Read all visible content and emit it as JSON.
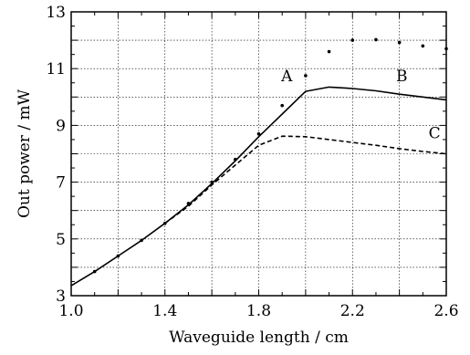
{
  "chart_data": {
    "type": "line",
    "title": "",
    "xlabel": "Waveguide length / cm",
    "ylabel": "Out power / mW",
    "xlim": [
      1.0,
      2.6
    ],
    "ylim": [
      3,
      13
    ],
    "xticks": [
      1.0,
      1.4,
      1.8,
      2.2,
      2.6
    ],
    "xtick_labels": [
      "1.0",
      "1.4",
      "1.8",
      "2.2",
      "2.6"
    ],
    "yticks": [
      3,
      5,
      7,
      9,
      11,
      13
    ],
    "ytick_labels": [
      "3",
      "5",
      "7",
      "9",
      "11",
      "13"
    ],
    "grid": true,
    "legend": "none",
    "series": [
      {
        "style": "dots",
        "color": "#000000",
        "x": [
          1.1,
          1.2,
          1.3,
          1.4,
          1.5,
          1.6,
          1.7,
          1.8,
          1.9,
          2.0,
          2.1,
          2.2,
          2.3,
          2.4,
          2.5,
          2.6
        ],
        "y": [
          3.85,
          4.4,
          4.95,
          5.55,
          6.25,
          7.0,
          7.8,
          8.7,
          9.7,
          10.75,
          11.6,
          12.0,
          12.02,
          11.92,
          11.8,
          11.7
        ]
      },
      {
        "style": "solid",
        "color": "#000000",
        "x": [
          1.0,
          1.1,
          1.2,
          1.3,
          1.4,
          1.5,
          1.6,
          1.7,
          1.8,
          1.9,
          2.0,
          2.1,
          2.2,
          2.3,
          2.4,
          2.5,
          2.6
        ],
        "y": [
          3.35,
          3.85,
          4.4,
          4.95,
          5.55,
          6.2,
          6.95,
          7.75,
          8.6,
          9.4,
          10.2,
          10.35,
          10.3,
          10.22,
          10.1,
          10.0,
          9.9
        ]
      },
      {
        "style": "dashed",
        "color": "#000000",
        "x": [
          1.4,
          1.5,
          1.6,
          1.7,
          1.8,
          1.9,
          2.0,
          2.1,
          2.2,
          2.3,
          2.4,
          2.5,
          2.6
        ],
        "y": [
          5.55,
          6.15,
          6.9,
          7.6,
          8.3,
          8.62,
          8.6,
          8.5,
          8.4,
          8.3,
          8.18,
          8.08,
          8.0
        ]
      }
    ],
    "annotations": [
      {
        "text": "A",
        "x": 1.92,
        "y": 10.55
      },
      {
        "text": "B",
        "x": 2.41,
        "y": 10.55
      },
      {
        "text": "C",
        "x": 2.55,
        "y": 8.55
      }
    ]
  }
}
